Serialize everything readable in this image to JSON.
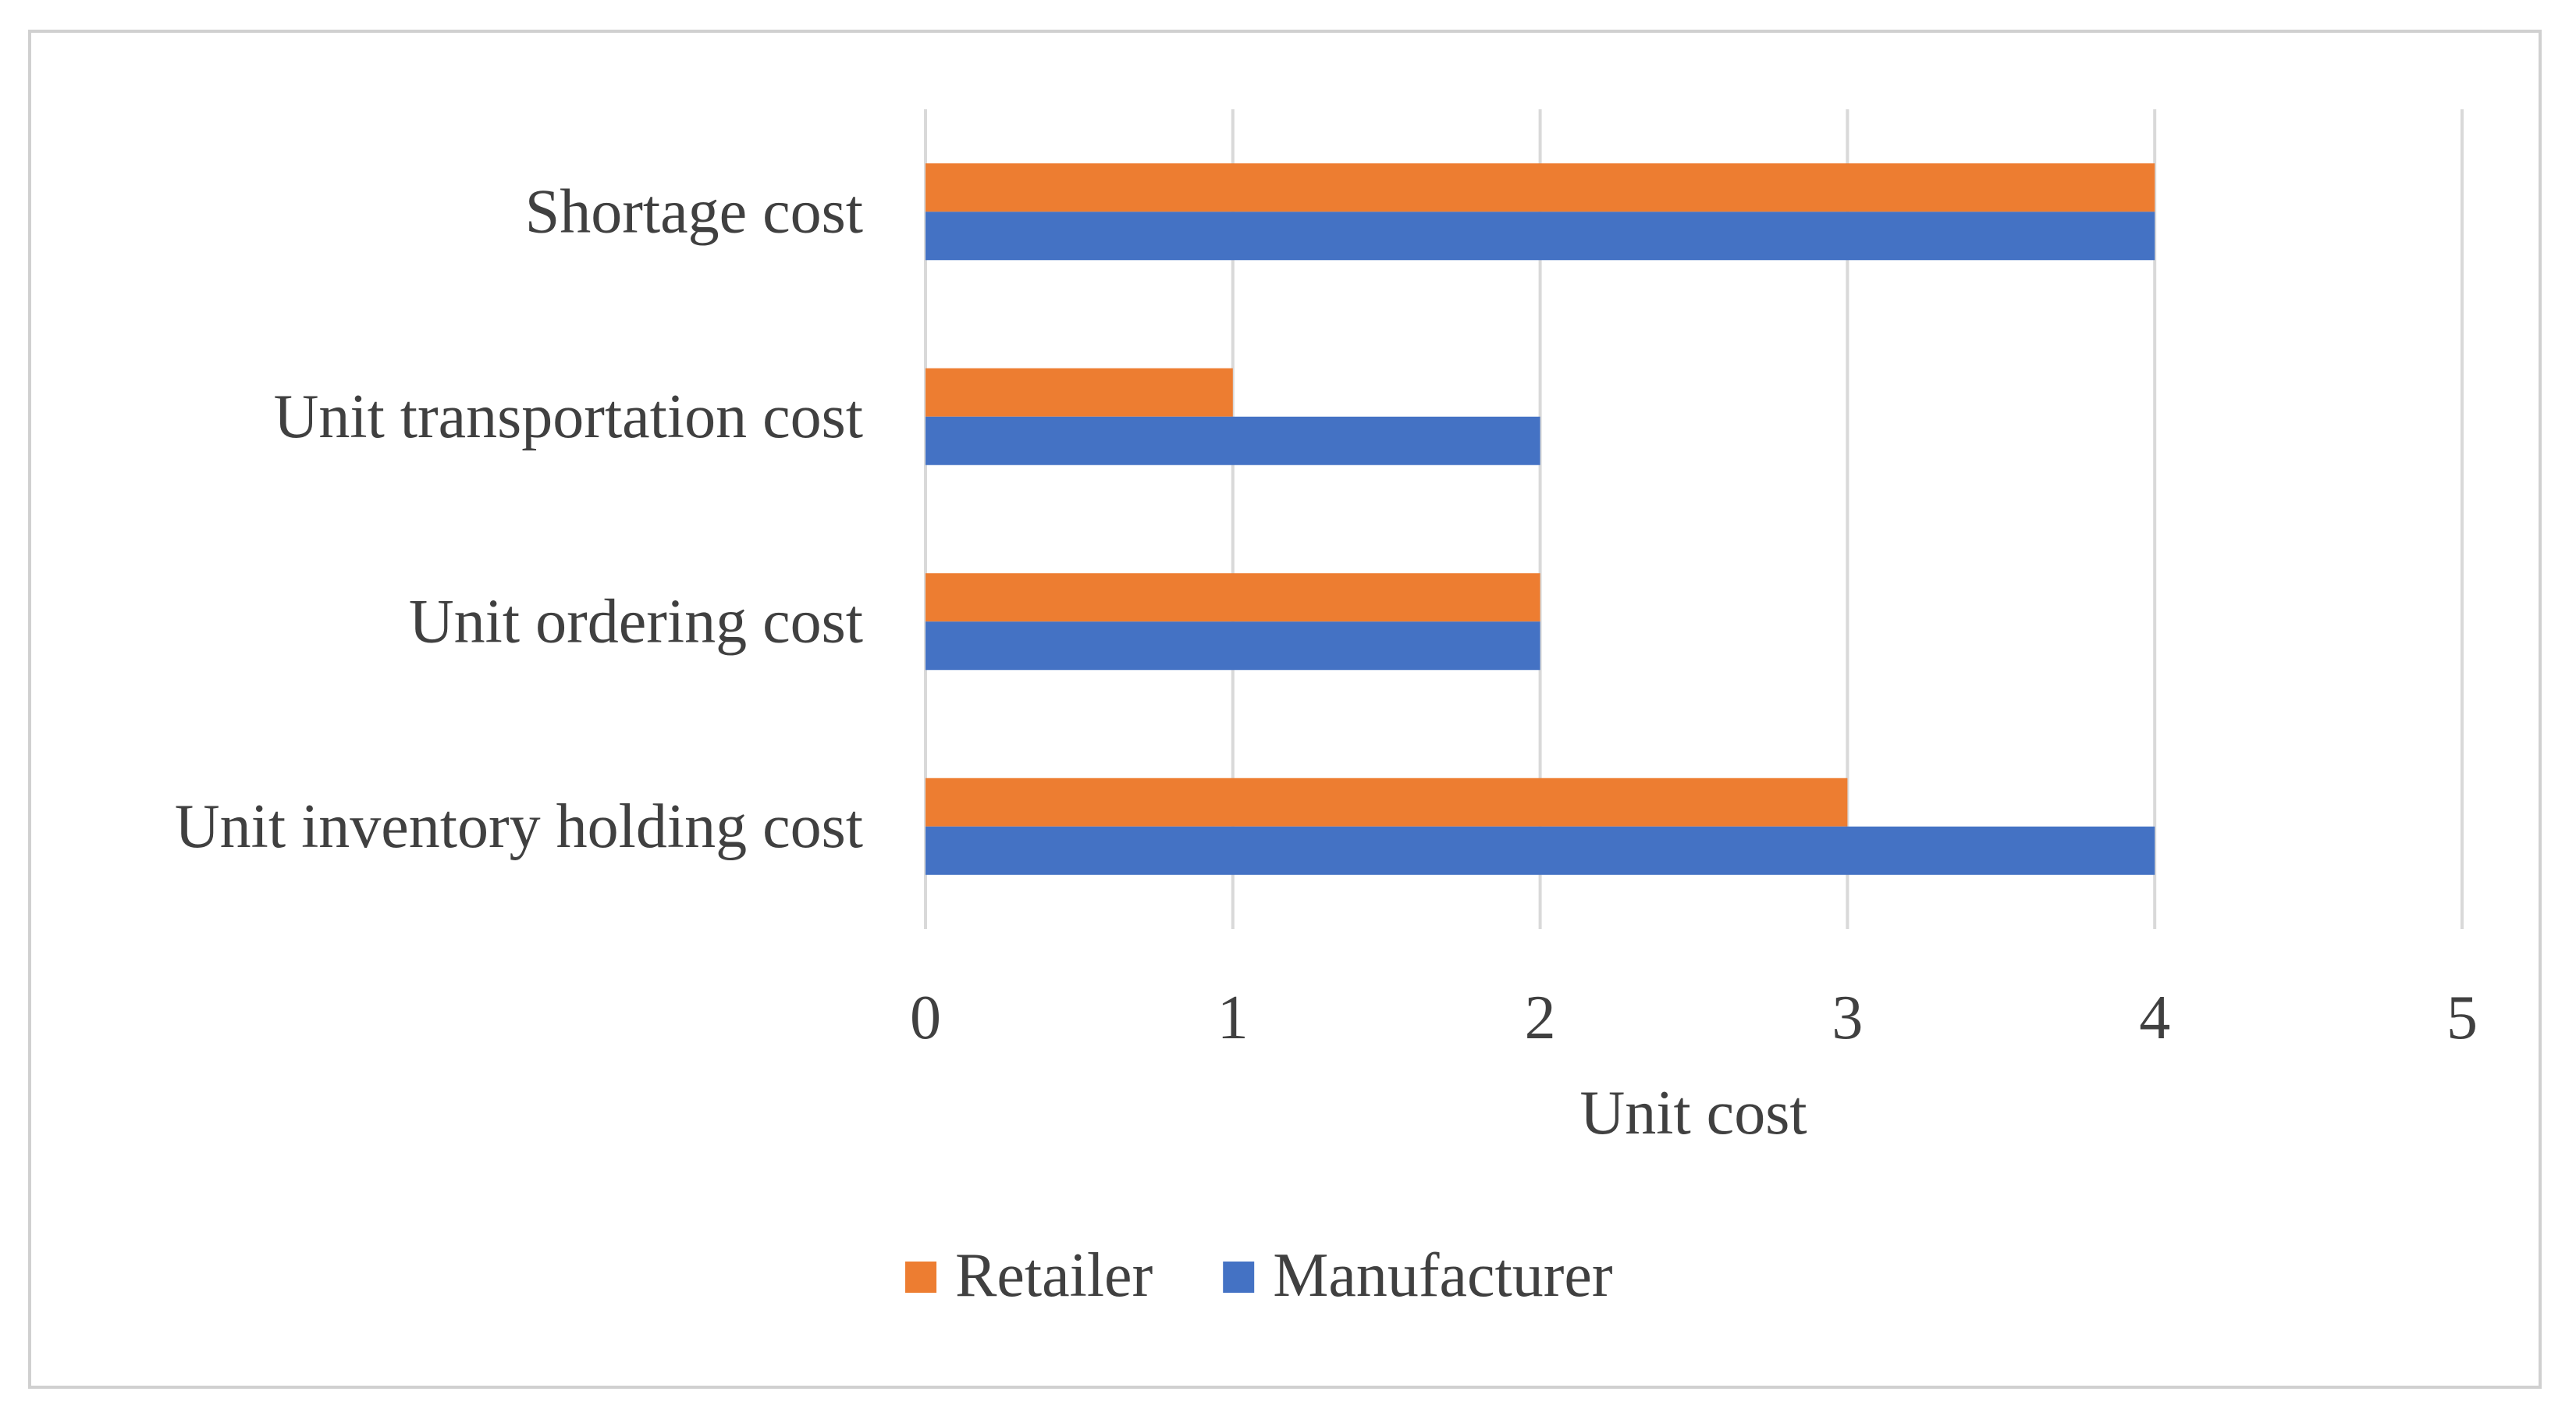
{
  "chart_data": {
    "type": "bar",
    "orientation": "horizontal",
    "title": "",
    "xlabel": "Unit cost",
    "ylabel": "",
    "xlim": [
      0,
      5
    ],
    "xticks": [
      0,
      1,
      2,
      3,
      4,
      5
    ],
    "grid": true,
    "legend_position": "bottom-center",
    "categories": [
      "Shortage cost",
      "Unit transportation cost",
      "Unit ordering cost",
      "Unit inventory holding cost"
    ],
    "series": [
      {
        "name": "Retailer",
        "color": "#ED7D31",
        "values": [
          4,
          1,
          2,
          3
        ]
      },
      {
        "name": "Manufacturer",
        "color": "#4472C4",
        "values": [
          4,
          2,
          2,
          4
        ]
      }
    ]
  },
  "colors": {
    "grid": "#d9d9d9",
    "text": "#404040",
    "frame": "#d0d0d0"
  }
}
